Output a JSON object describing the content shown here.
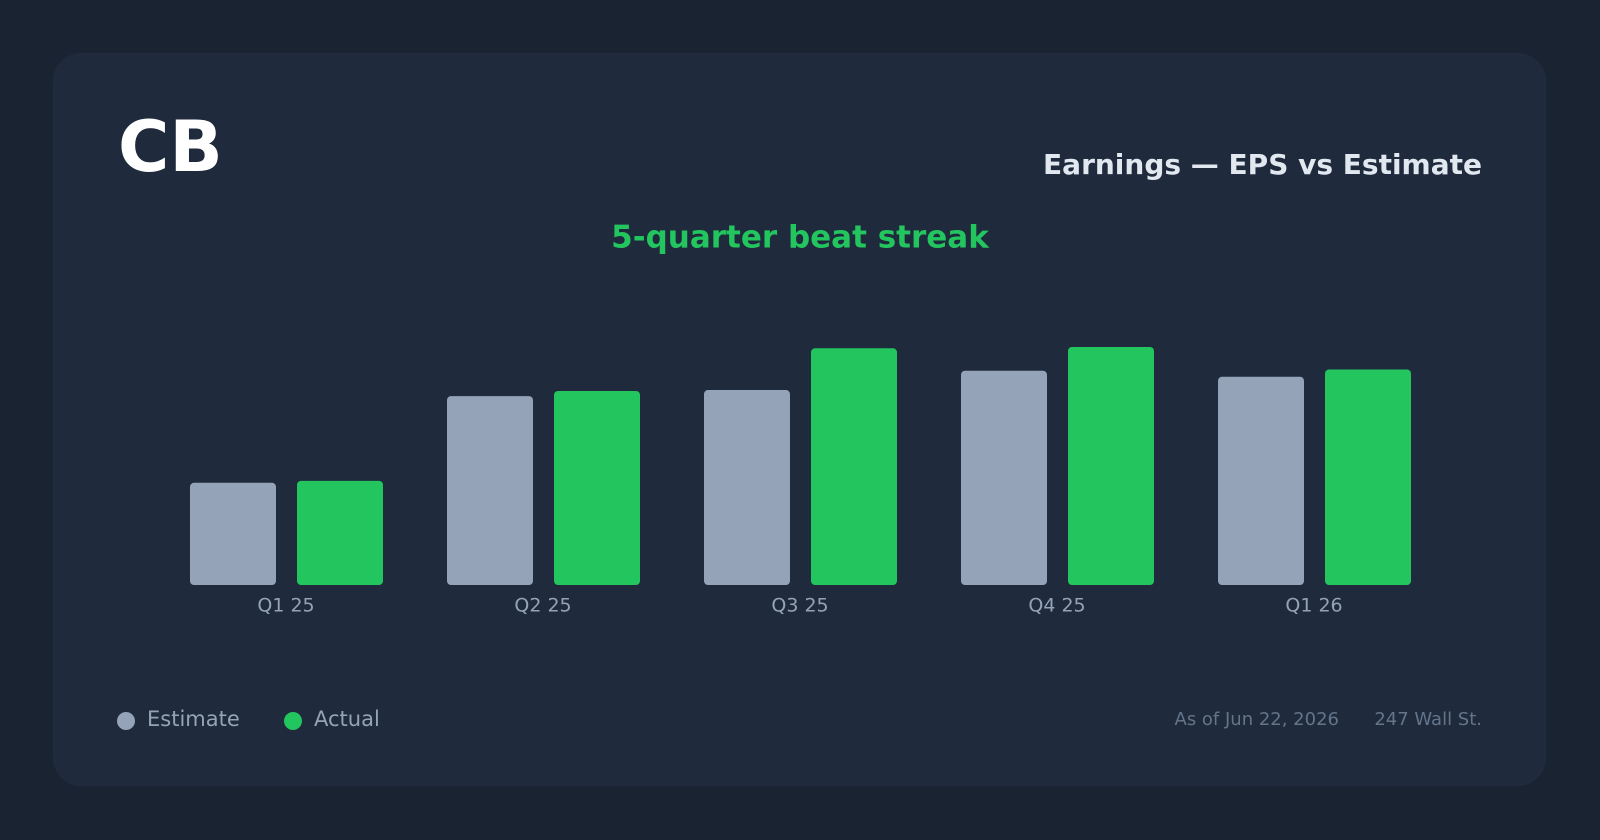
{
  "chart_data": {
    "type": "bar",
    "ticker": "CB",
    "title": "Earnings — EPS vs Estimate",
    "subtitle": "5-quarter beat streak",
    "categories": [
      "Q1 25",
      "Q2 25",
      "Q3 25",
      "Q4 25",
      "Q1 26"
    ],
    "series": [
      {
        "name": "Estimate",
        "color": "#94a3b8",
        "values": [
          3.23,
          5.97,
          6.16,
          6.77,
          6.58
        ]
      },
      {
        "name": "Actual",
        "color": "#22c55e",
        "values": [
          3.29,
          6.13,
          7.48,
          7.52,
          6.81
        ]
      }
    ],
    "ylim": [
      0,
      8.5
    ],
    "as_of": "As of Jun 22, 2026",
    "source": "247 Wall St."
  }
}
